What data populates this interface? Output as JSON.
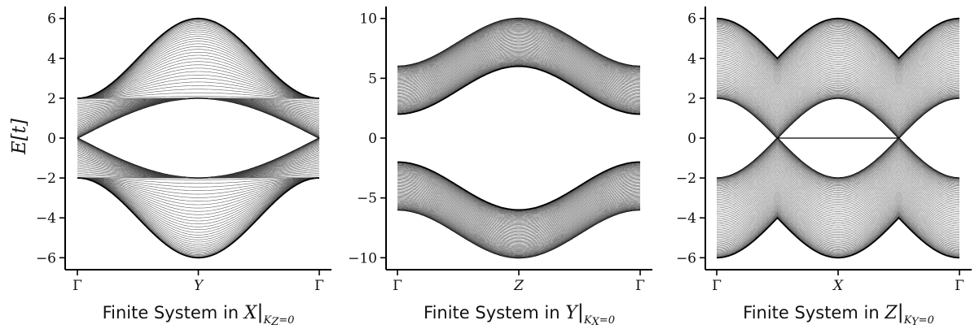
{
  "chart_data": [
    {
      "type": "line",
      "band_model": "kz0",
      "ylabel": "E[t]",
      "xlabel": {
        "prefix": "Finite System in ",
        "dir": "X",
        "sub": "K",
        "subsub": "Z",
        "subtail": "=0"
      },
      "xticks": [
        "Γ",
        "Y",
        "Γ"
      ],
      "yticks": [
        6,
        4,
        2,
        0,
        -2,
        -4,
        -6
      ],
      "ylim": [
        -6.6,
        6.6
      ],
      "grid": false
    },
    {
      "type": "line",
      "band_model": "kx0",
      "ylabel": "",
      "xlabel": {
        "prefix": "Finite System in ",
        "dir": "Y",
        "sub": "K",
        "subsub": "X",
        "subtail": "=0"
      },
      "xticks": [
        "Γ",
        "Z",
        "Γ"
      ],
      "yticks": [
        10,
        5,
        0,
        -5,
        -10
      ],
      "ylim": [
        -11,
        11
      ],
      "grid": false
    },
    {
      "type": "line",
      "band_model": "ky0",
      "ylabel": "",
      "xlabel": {
        "prefix": "Finite System in ",
        "dir": "Z",
        "sub": "K",
        "subsub": "Y",
        "subtail": "=0"
      },
      "xticks": [
        "Γ",
        "X",
        "Γ"
      ],
      "yticks": [
        6,
        4,
        2,
        0,
        -2,
        -4,
        -6
      ],
      "ylim": [
        -6.6,
        6.6
      ],
      "grid": false
    }
  ]
}
